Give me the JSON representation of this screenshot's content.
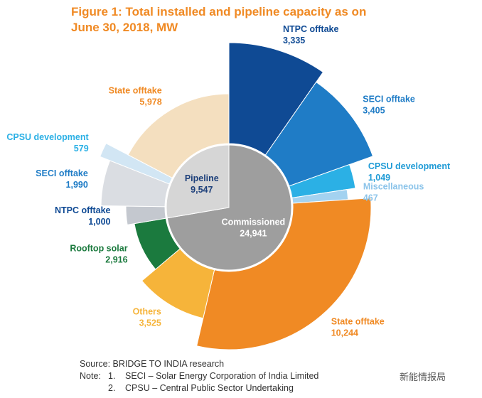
{
  "chart_data": {
    "type": "sunburst",
    "title": "Figure 1: Total installed and pipeline capacity as on June 30, 2018, MW",
    "groups": [
      {
        "name": "Commissioned",
        "value": 24941,
        "value_label": "24,941",
        "color": "#9e9e9e",
        "categories": [
          "NTPC offtake",
          "SECI offtake",
          "CPSU development",
          "Miscellaneous",
          "State offtake",
          "Others",
          "Rooftop solar"
        ],
        "values": [
          3335,
          3405,
          1049,
          467,
          10244,
          3525,
          2916
        ],
        "value_labels": [
          "3,335",
          "3,405",
          "1,049",
          "467",
          "10,244",
          "3,525",
          "2,916"
        ],
        "colors": [
          "#0f4a94",
          "#1f7cc6",
          "#2bb0e5",
          "#a3d2f0",
          "#f08a24",
          "#f6b43a",
          "#1b7a3e"
        ],
        "label_colors": [
          "#0f4a94",
          "#1f7cc6",
          "#1f9bd6",
          "#8cc4ea",
          "#f08a24",
          "#f6b43a",
          "#1b7a3e"
        ]
      },
      {
        "name": "Pipeline",
        "value": 9547,
        "value_label": "9,547",
        "color": "#d6d6d6",
        "categories": [
          "NTPC offtake",
          "SECI offtake",
          "CPSU development",
          "State offtake"
        ],
        "values": [
          1000,
          1990,
          579,
          5978
        ],
        "value_labels": [
          "1,000",
          "1,990",
          "579",
          "5,978"
        ],
        "colors": [
          "#c4c8cf",
          "#dadde2",
          "#d2e6f4",
          "#f4dfbf"
        ],
        "label_colors": [
          "#0f4a94",
          "#1f7cc6",
          "#2bb0e5",
          "#f08a24"
        ]
      }
    ],
    "source": "Source: BRIDGE TO INDIA research",
    "notes": {
      "label": "Note:",
      "items": [
        [
          "1.",
          "SECI – Solar Energy Corporation of India Limited"
        ],
        [
          "2.",
          "CPSU – Central Public Sector Undertaking"
        ]
      ]
    },
    "watermark": "新能情报局"
  }
}
